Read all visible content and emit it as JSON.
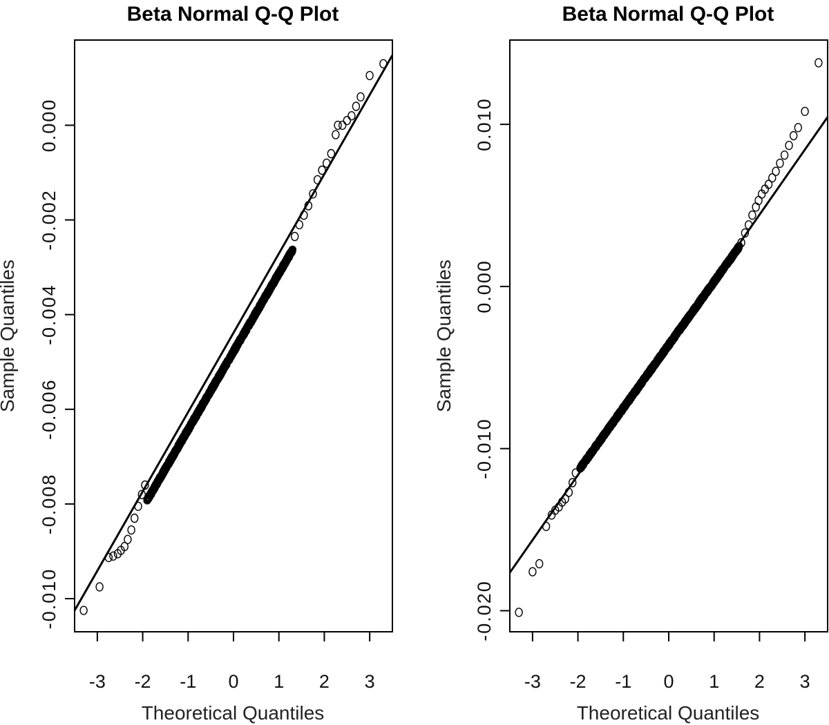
{
  "chart_data": [
    {
      "type": "scatter",
      "title": "Beta Normal Q-Q Plot",
      "xlabel": "Theoretical Quantiles",
      "ylabel": "Sample Quantiles",
      "xlim": [
        -3.5,
        3.5
      ],
      "ylim": [
        -0.0107,
        0.0018
      ],
      "xticks": [
        -3,
        -2,
        -1,
        0,
        1,
        2,
        3
      ],
      "yticks": [
        -0.01,
        -0.008,
        -0.006,
        -0.004,
        -0.002,
        0.0
      ],
      "ytick_labels": [
        "-0.010",
        "-0.008",
        "-0.006",
        "-0.004",
        "-0.002",
        "0.000"
      ],
      "ref_line": {
        "x": [
          -3.5,
          3.5
        ],
        "y": [
          -0.01025,
          0.00148
        ]
      },
      "body_fit": {
        "slope": 0.00165,
        "intercept": -0.00478,
        "x_range": [
          -1.9,
          1.3
        ]
      },
      "outliers": [
        {
          "x": -3.3,
          "y": -0.01025
        },
        {
          "x": -2.95,
          "y": -0.00975
        },
        {
          "x": -2.75,
          "y": -0.00913
        },
        {
          "x": -2.65,
          "y": -0.0091
        },
        {
          "x": -2.55,
          "y": -0.00905
        },
        {
          "x": -2.48,
          "y": -0.00898
        },
        {
          "x": -2.4,
          "y": -0.0089
        },
        {
          "x": -2.33,
          "y": -0.00875
        },
        {
          "x": -2.25,
          "y": -0.00855
        },
        {
          "x": -2.18,
          "y": -0.0083
        },
        {
          "x": -2.1,
          "y": -0.00805
        },
        {
          "x": -2.02,
          "y": -0.0078
        },
        {
          "x": -1.95,
          "y": -0.0076
        },
        {
          "x": 1.35,
          "y": -0.00235
        },
        {
          "x": 1.45,
          "y": -0.0021
        },
        {
          "x": 1.55,
          "y": -0.0019
        },
        {
          "x": 1.65,
          "y": -0.0017
        },
        {
          "x": 1.75,
          "y": -0.00145
        },
        {
          "x": 1.85,
          "y": -0.00115
        },
        {
          "x": 1.95,
          "y": -0.00095
        },
        {
          "x": 2.05,
          "y": -0.0008
        },
        {
          "x": 2.15,
          "y": -0.0006
        },
        {
          "x": 2.25,
          "y": -0.0002
        },
        {
          "x": 2.3,
          "y": 0.0
        },
        {
          "x": 2.4,
          "y": 0.0
        },
        {
          "x": 2.5,
          "y": 0.0001
        },
        {
          "x": 2.6,
          "y": 0.0002
        },
        {
          "x": 2.7,
          "y": 0.0004
        },
        {
          "x": 2.8,
          "y": 0.0006
        },
        {
          "x": 3.0,
          "y": 0.00105
        },
        {
          "x": 3.3,
          "y": 0.0013
        }
      ]
    },
    {
      "type": "scatter",
      "title": "Beta Normal Q-Q Plot",
      "xlabel": "Theoretical Quantiles",
      "ylabel": "Sample Quantiles",
      "xlim": [
        -3.5,
        3.5
      ],
      "ylim": [
        -0.0213,
        0.0152
      ],
      "xticks": [
        -3,
        -2,
        -1,
        0,
        1,
        2,
        3
      ],
      "yticks": [
        -0.02,
        -0.01,
        0.0,
        0.01
      ],
      "ytick_labels": [
        "-0.020",
        "-0.010",
        "0.000",
        "0.010"
      ],
      "ref_line": {
        "x": [
          -3.5,
          3.5
        ],
        "y": [
          -0.01765,
          0.01045
        ]
      },
      "body_fit": {
        "slope": 0.0039,
        "intercept": -0.0036,
        "x_range": [
          -1.95,
          1.55
        ]
      },
      "outliers": [
        {
          "x": -3.3,
          "y": -0.0201
        },
        {
          "x": -3.0,
          "y": -0.0176
        },
        {
          "x": -2.85,
          "y": -0.0171
        },
        {
          "x": -2.7,
          "y": -0.0148
        },
        {
          "x": -2.58,
          "y": -0.0141
        },
        {
          "x": -2.5,
          "y": -0.0138
        },
        {
          "x": -2.42,
          "y": -0.0136
        },
        {
          "x": -2.35,
          "y": -0.0133
        },
        {
          "x": -2.28,
          "y": -0.0131
        },
        {
          "x": -2.2,
          "y": -0.0127
        },
        {
          "x": -2.12,
          "y": -0.0121
        },
        {
          "x": -2.05,
          "y": -0.0115
        },
        {
          "x": 1.6,
          "y": 0.0027
        },
        {
          "x": 1.68,
          "y": 0.0033
        },
        {
          "x": 1.76,
          "y": 0.0038
        },
        {
          "x": 1.84,
          "y": 0.0044
        },
        {
          "x": 1.92,
          "y": 0.0049
        },
        {
          "x": 1.98,
          "y": 0.0053
        },
        {
          "x": 2.05,
          "y": 0.0057
        },
        {
          "x": 2.12,
          "y": 0.006
        },
        {
          "x": 2.2,
          "y": 0.0063
        },
        {
          "x": 2.28,
          "y": 0.0067
        },
        {
          "x": 2.36,
          "y": 0.0071
        },
        {
          "x": 2.45,
          "y": 0.0076
        },
        {
          "x": 2.55,
          "y": 0.0081
        },
        {
          "x": 2.65,
          "y": 0.0087
        },
        {
          "x": 2.75,
          "y": 0.0093
        },
        {
          "x": 2.85,
          "y": 0.0098
        },
        {
          "x": 3.0,
          "y": 0.0108
        },
        {
          "x": 3.3,
          "y": 0.0138
        }
      ]
    }
  ]
}
